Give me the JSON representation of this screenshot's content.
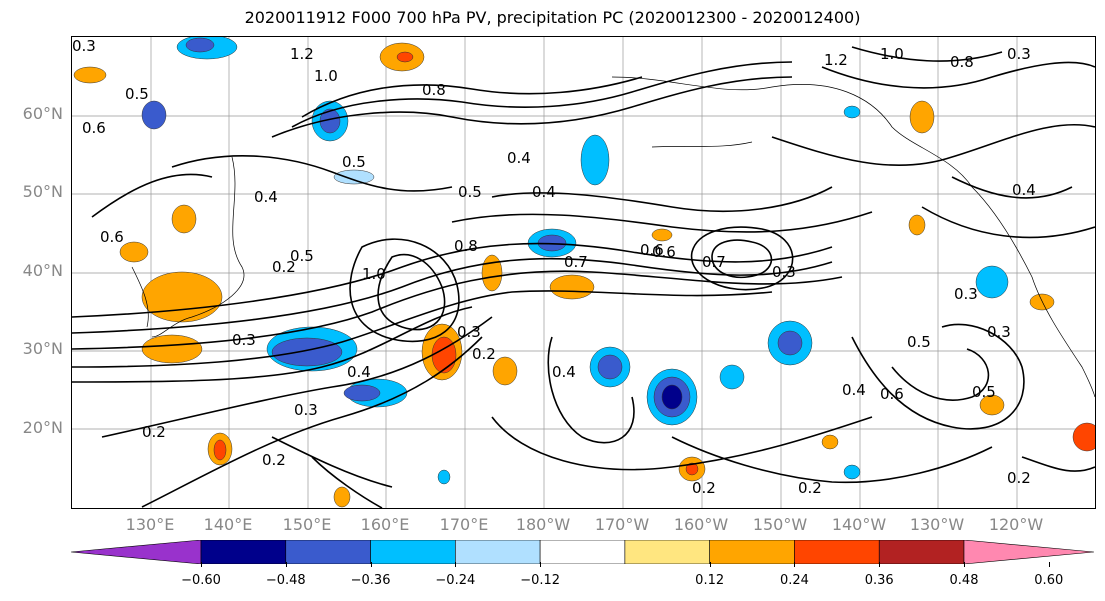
{
  "title": "2020011912 F000 700 hPa PV, precipitation PC (2020012300 - 2020012400)",
  "lat_labels": [
    "60°N",
    "50°N",
    "40°N",
    "30°N",
    "20°N"
  ],
  "lon_labels": [
    "130°E",
    "140°E",
    "150°E",
    "160°E",
    "170°E",
    "180°W",
    "170°W",
    "160°W",
    "150°W",
    "140°W",
    "130°W",
    "120°W"
  ],
  "colorbar": {
    "ticks": [
      "−0.60",
      "−0.48",
      "−0.36",
      "−0.24",
      "−0.12",
      "0.12",
      "0.24",
      "0.36",
      "0.48",
      "0.60"
    ],
    "colors": [
      "#9932cc",
      "#00008b",
      "#3a5bcd",
      "#00bfff",
      "#b0e0ff",
      "#ffffff",
      "#ffe680",
      "#ffa500",
      "#ff4500",
      "#b22222",
      "#ff88b0"
    ]
  },
  "contour_labels": [
    "1.2",
    "1.0",
    "0.3",
    "0.8",
    "0.6",
    "0.5",
    "0.4",
    "0.2",
    "0.7",
    "0.3",
    "0.5",
    "0.4",
    "0.6",
    "0.2",
    "0.3",
    "0.4",
    "0.5",
    "0.2",
    "0.2",
    "0.3",
    "0.4",
    "0.6",
    "0.5",
    "0.4",
    "0.3",
    "0.2",
    "0.5",
    "0.4",
    "0.3",
    "0.2",
    "0.6",
    "0.7",
    "0.6",
    "1.0",
    "0.8",
    "0.5",
    "0.4",
    "0.3",
    "0.2",
    "1.2",
    "1.0",
    "0.8",
    "0.3"
  ]
}
